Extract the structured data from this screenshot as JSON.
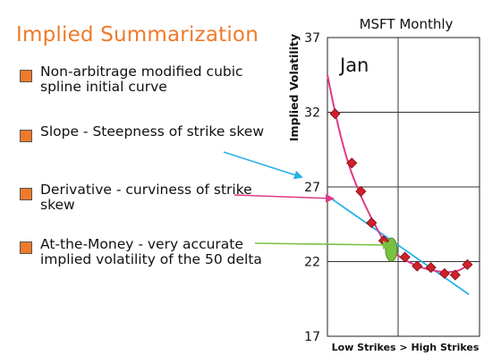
{
  "slide_title": "Implied Summarization",
  "bullets": [
    "Non-arbitrage modified cubic spline initial curve",
    "Slope - Steepness of strike skew",
    "Derivative - curviness of strike skew",
    "At-the-Money - very accurate implied volatility of the 50 delta"
  ],
  "colors": {
    "title": "#f07a2a",
    "bullet": "#f07a2a",
    "curve": "#e03a84",
    "points": "#d0202a",
    "slope_line": "#2ab0e8",
    "atm_marker": "#7ac142",
    "arrow_slope": "#2ab0e8",
    "arrow_derivative": "#e03a84",
    "arrow_atm": "#7ac142"
  },
  "chart_data": {
    "type": "scatter",
    "title": "MSFT Monthly",
    "annotation": "Jan",
    "xlabel": "Low Strikes > High Strikes",
    "ylabel": "Implied Volatility",
    "ylim": [
      17,
      37
    ],
    "yticks": [
      17,
      22,
      27,
      32,
      37
    ],
    "xlim": [
      0,
      10
    ],
    "grid": true,
    "series": [
      {
        "type": "scatter",
        "marker": "diamond",
        "x": [
          0.5,
          1.6,
          2.2,
          2.9,
          3.7,
          5.1,
          5.9,
          6.8,
          7.7,
          8.4,
          9.2
        ],
        "y": [
          31.9,
          28.6,
          26.7,
          24.6,
          23.4,
          22.3,
          21.7,
          21.6,
          21.2,
          21.1,
          21.8
        ]
      },
      {
        "type": "line",
        "x": [
          0.0,
          0.4,
          0.9,
          1.5,
          2.2,
          2.9,
          3.6,
          4.2,
          4.8,
          5.5,
          6.2,
          7.0,
          7.8,
          8.6,
          9.3
        ],
        "y": [
          34.5,
          32.5,
          30.3,
          28.2,
          26.4,
          24.9,
          23.6,
          22.8,
          22.3,
          21.9,
          21.6,
          21.4,
          21.3,
          21.4,
          21.8
        ]
      },
      {
        "type": "line",
        "x": [
          0.0,
          9.3
        ],
        "y": [
          26.4,
          19.8
        ]
      }
    ],
    "atm_marker": {
      "x": 4.2,
      "y": 22.8
    }
  }
}
